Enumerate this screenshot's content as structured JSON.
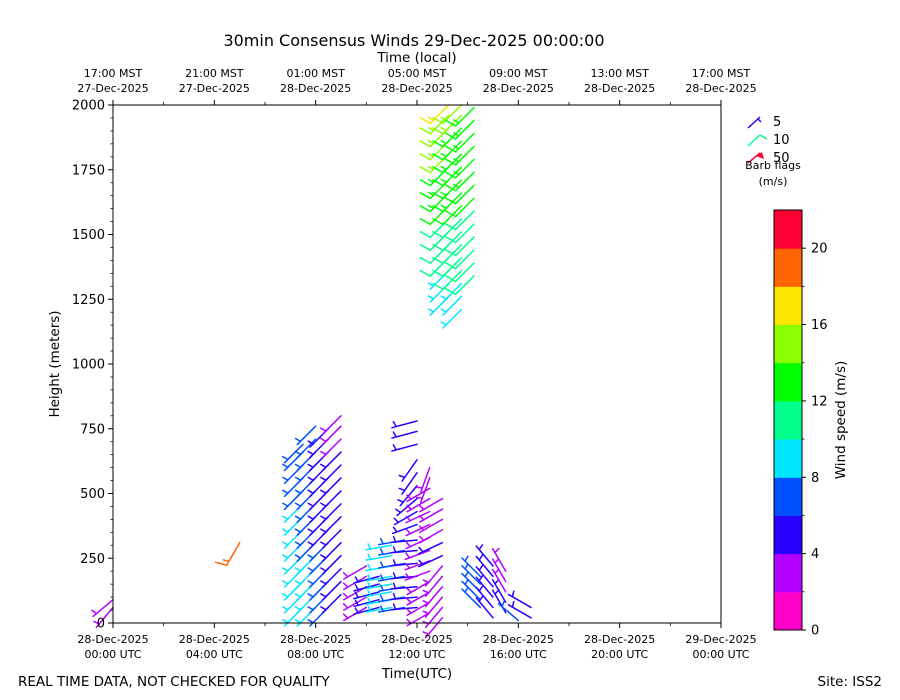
{
  "chart_data": {
    "type": "wind_barb_time_height",
    "title": "30min Consensus Winds 29-Dec-2025 00:00:00",
    "top_axis_title": "Time (local)",
    "xlabel": "Time(UTC)",
    "ylabel": "Height (meters)",
    "x_range_hours": [
      0,
      24
    ],
    "ylim": [
      0,
      2000
    ],
    "y_ticks": [
      0,
      250,
      500,
      750,
      1000,
      1250,
      1500,
      1750,
      2000
    ],
    "x_ticks_utc": [
      {
        "h": 0,
        "line1": "28-Dec-2025",
        "line2": "00:00 UTC"
      },
      {
        "h": 4,
        "line1": "28-Dec-2025",
        "line2": "04:00 UTC"
      },
      {
        "h": 8,
        "line1": "28-Dec-2025",
        "line2": "08:00 UTC"
      },
      {
        "h": 12,
        "line1": "28-Dec-2025",
        "line2": "12:00 UTC"
      },
      {
        "h": 16,
        "line1": "28-Dec-2025",
        "line2": "16:00 UTC"
      },
      {
        "h": 20,
        "line1": "28-Dec-2025",
        "line2": "20:00 UTC"
      },
      {
        "h": 24,
        "line1": "29-Dec-2025",
        "line2": "00:00 UTC"
      }
    ],
    "x_ticks_local": [
      {
        "h": 0,
        "line1": "17:00 MST",
        "line2": "27-Dec-2025"
      },
      {
        "h": 4,
        "line1": "21:00 MST",
        "line2": "27-Dec-2025"
      },
      {
        "h": 8,
        "line1": "01:00 MST",
        "line2": "28-Dec-2025"
      },
      {
        "h": 12,
        "line1": "05:00 MST",
        "line2": "28-Dec-2025"
      },
      {
        "h": 16,
        "line1": "09:00 MST",
        "line2": "28-Dec-2025"
      },
      {
        "h": 20,
        "line1": "13:00 MST",
        "line2": "28-Dec-2025"
      },
      {
        "h": 24,
        "line1": "17:00 MST",
        "line2": "28-Dec-2025"
      }
    ],
    "colorbar": {
      "label": "Wind speed (m/s)",
      "min": 0,
      "max": 22,
      "ticks": [
        0,
        4,
        8,
        12,
        16,
        20
      ],
      "colors": [
        "#ff00c8",
        "#b400ff",
        "#2800ff",
        "#0050ff",
        "#00e6ff",
        "#00ff8c",
        "#00ff00",
        "#8cff00",
        "#ffe600",
        "#ff6400",
        "#ff0032"
      ]
    },
    "legend": {
      "items": [
        {
          "label": "5",
          "color": "#2800ff"
        },
        {
          "label": "10",
          "color": "#00ff8c"
        },
        {
          "label": "50",
          "color": "#ff0032"
        }
      ],
      "title_line1": "Barb flags",
      "title_line2": "(m/s)"
    },
    "columns": [
      {
        "h": 0.0,
        "heights": [
          60,
          90
        ],
        "speeds": [
          3.0,
          3.0
        ],
        "dirs": [
          220,
          230
        ]
      },
      {
        "h": 5.0,
        "heights": [
          310
        ],
        "speeds": [
          19.5
        ],
        "dirs": [
          210
        ]
      },
      {
        "h": 7.5,
        "heights": [
          60,
          110,
          160,
          210,
          260,
          310,
          360,
          410,
          460,
          510,
          560,
          610,
          660,
          690
        ],
        "speeds": [
          8.5,
          8.5,
          8.5,
          8.5,
          8.5,
          8.5,
          8.5,
          8.5,
          8.5,
          7.5,
          7.5,
          7.0,
          7.0,
          7.0
        ],
        "dirs": [
          225,
          225,
          225,
          225,
          225,
          225,
          225,
          225,
          225,
          225,
          225,
          225,
          225,
          225
        ]
      },
      {
        "h": 8.0,
        "heights": [
          60,
          110,
          160,
          210,
          260,
          310,
          360,
          410,
          460,
          510,
          560,
          610,
          660,
          710,
          760
        ],
        "speeds": [
          8.5,
          8.5,
          8.5,
          8.0,
          8.0,
          7.5,
          7.5,
          7.0,
          7.0,
          7.0,
          7.0,
          7.0,
          7.0,
          7.0,
          6.5
        ],
        "dirs": [
          225,
          225,
          225,
          225,
          225,
          225,
          225,
          225,
          225,
          225,
          225,
          225,
          225,
          225,
          225
        ]
      },
      {
        "h": 8.5,
        "heights": [
          60,
          110,
          160,
          210,
          260,
          310,
          360,
          410,
          460,
          510,
          560,
          610,
          660,
          710,
          750
        ],
        "speeds": [
          6.5,
          6.5,
          6.0,
          6.0,
          6.0,
          6.0,
          5.5,
          5.5,
          5.5,
          5.5,
          5.5,
          5.5,
          5.0,
          5.0,
          5.0
        ],
        "dirs": [
          225,
          225,
          225,
          225,
          225,
          225,
          225,
          225,
          225,
          225,
          225,
          225,
          225,
          225,
          225
        ]
      },
      {
        "h": 9.0,
        "heights": [
          110,
          160,
          210,
          260,
          310,
          360,
          410,
          460,
          510,
          560,
          610,
          660,
          710,
          760,
          800
        ],
        "speeds": [
          5.5,
          5.5,
          5.5,
          5.0,
          5.0,
          5.0,
          4.5,
          4.5,
          4.5,
          4.0,
          4.0,
          4.0,
          3.5,
          3.5,
          3.5
        ],
        "dirs": [
          225,
          225,
          225,
          225,
          225,
          225,
          225,
          225,
          225,
          225,
          225,
          225,
          225,
          225,
          225
        ]
      },
      {
        "h": 10.0,
        "heights": [
          60,
          100,
          140,
          180,
          220
        ],
        "speeds": [
          3.5,
          3.5,
          3.5,
          3.5,
          3.5
        ],
        "dirs": [
          240,
          240,
          240,
          240,
          240
        ]
      },
      {
        "h": 10.5,
        "heights": [
          60,
          90,
          120,
          150,
          180
        ],
        "speeds": [
          5.5,
          5.5,
          5.5,
          5.0,
          5.0
        ],
        "dirs": [
          255,
          255,
          255,
          255,
          255
        ]
      },
      {
        "h": 11.0,
        "heights": [
          60,
          90,
          120,
          150,
          180,
          220,
          260,
          300
        ],
        "speeds": [
          8.5,
          8.5,
          8.0,
          8.0,
          8.0,
          8.0,
          8.0,
          8.0
        ],
        "dirs": [
          260,
          260,
          260,
          260,
          260,
          260,
          260,
          260
        ]
      },
      {
        "h": 11.5,
        "heights": [
          60,
          100,
          140,
          180,
          230,
          280,
          320
        ],
        "speeds": [
          7.0,
          7.0,
          7.0,
          6.5,
          6.5,
          6.5,
          6.5
        ],
        "dirs": [
          260,
          260,
          260,
          260,
          260,
          260,
          260
        ]
      },
      {
        "h": 12.0,
        "heights": [
          60,
          100,
          140,
          180,
          230,
          280,
          320,
          380,
          430,
          480,
          530,
          580,
          630,
          690,
          740,
          780
        ],
        "speeds": [
          4.5,
          4.5,
          4.5,
          4.5,
          4.5,
          4.5,
          4.5,
          4.5,
          4.5,
          4.5,
          4.5,
          4.5,
          5.0,
          5.0,
          5.0,
          5.0
        ],
        "dirs": [
          265,
          265,
          265,
          265,
          265,
          265,
          265,
          250,
          240,
          230,
          220,
          215,
          215,
          255,
          255,
          255
        ]
      },
      {
        "h": 12.5,
        "heights": [
          40,
          80,
          120,
          160,
          200,
          240,
          280,
          330,
          380,
          430,
          480,
          520,
          560,
          600
        ],
        "speeds": [
          3.0,
          3.0,
          3.0,
          3.0,
          3.5,
          3.5,
          3.5,
          3.0,
          3.0,
          3.0,
          3.0,
          3.0,
          3.0,
          3.0
        ],
        "dirs": [
          240,
          240,
          240,
          240,
          250,
          250,
          250,
          245,
          245,
          245,
          240,
          240,
          200,
          200
        ]
      },
      {
        "h": 13.0,
        "heights": [
          20,
          60,
          100,
          140,
          180,
          220,
          260,
          310,
          360,
          400,
          440,
          480
        ],
        "speeds": [
          3.5,
          3.5,
          3.5,
          3.5,
          3.5,
          3.5,
          4.0,
          4.0,
          3.5,
          3.5,
          3.5,
          3.5
        ],
        "dirs": [
          220,
          220,
          220,
          220,
          220,
          220,
          245,
          245,
          240,
          240,
          240,
          240
        ]
      },
      {
        "h": 13.25,
        "heights": [
          1260,
          1310,
          1360,
          1410,
          1460,
          1510,
          1560,
          1610,
          1660,
          1710,
          1760,
          1810,
          1860,
          1910,
          1960,
          2000
        ],
        "speeds": [
          8.5,
          8.5,
          9.0,
          10.0,
          10.5,
          11.0,
          11.5,
          12.0,
          12.5,
          13.0,
          13.5,
          14.0,
          14.5,
          15.0,
          15.5,
          16.0
        ],
        "dirs": [
          225,
          225,
          225,
          225,
          225,
          225,
          225,
          225,
          225,
          225,
          225,
          225,
          225,
          225,
          225,
          225
        ]
      },
      {
        "h": 13.75,
        "heights": [
          1210,
          1260,
          1310,
          1360,
          1410,
          1460,
          1510,
          1560,
          1610,
          1660,
          1710,
          1760,
          1810,
          1860,
          1910,
          1960,
          2000
        ],
        "speeds": [
          9.0,
          9.0,
          9.5,
          10.0,
          10.5,
          10.5,
          11.0,
          11.5,
          12.0,
          12.5,
          12.5,
          13.0,
          13.0,
          13.5,
          13.5,
          14.0,
          14.0
        ],
        "dirs": [
          225,
          225,
          225,
          225,
          225,
          225,
          225,
          225,
          225,
          225,
          225,
          225,
          225,
          225,
          225,
          225,
          225
        ]
      },
      {
        "h": 14.25,
        "heights": [
          1340,
          1390,
          1440,
          1490,
          1540,
          1590,
          1640,
          1690,
          1740,
          1790,
          1840,
          1890,
          1940,
          1990
        ],
        "speeds": [
          10.5,
          10.5,
          11.0,
          11.0,
          11.5,
          11.5,
          12.0,
          12.0,
          12.5,
          12.5,
          13.0,
          13.0,
          13.5,
          13.5
        ],
        "dirs": [
          225,
          225,
          225,
          225,
          225,
          225,
          225,
          225,
          225,
          225,
          225,
          225,
          225,
          225
        ]
      },
      {
        "h": 14.5,
        "heights": [
          60,
          90,
          120,
          150,
          180
        ],
        "speeds": [
          7.0,
          7.0,
          6.5,
          6.5,
          6.5
        ],
        "dirs": [
          315,
          315,
          315,
          315,
          315
        ]
      },
      {
        "h": 15.0,
        "heights": [
          20,
          60,
          100,
          140,
          180,
          220
        ],
        "speeds": [
          5.0,
          5.0,
          5.0,
          4.5,
          4.5,
          4.5
        ],
        "dirs": [
          320,
          320,
          320,
          320,
          320,
          320
        ]
      },
      {
        "h": 15.5,
        "heights": [
          40,
          80,
          120,
          160,
          200
        ],
        "speeds": [
          5.0,
          5.0,
          3.5,
          3.5,
          3.5
        ],
        "dirs": [
          330,
          330,
          330,
          330,
          330
        ]
      },
      {
        "h": 16.0,
        "heights": [
          10
        ],
        "speeds": [
          6.0
        ],
        "dirs": [
          310
        ]
      },
      {
        "h": 16.5,
        "heights": [
          20,
          60
        ],
        "speeds": [
          5.0,
          5.0
        ],
        "dirs": [
          300,
          300
        ]
      }
    ]
  },
  "footer": {
    "left": "REAL TIME DATA, NOT CHECKED FOR QUALITY",
    "right": "Site: ISS2"
  }
}
